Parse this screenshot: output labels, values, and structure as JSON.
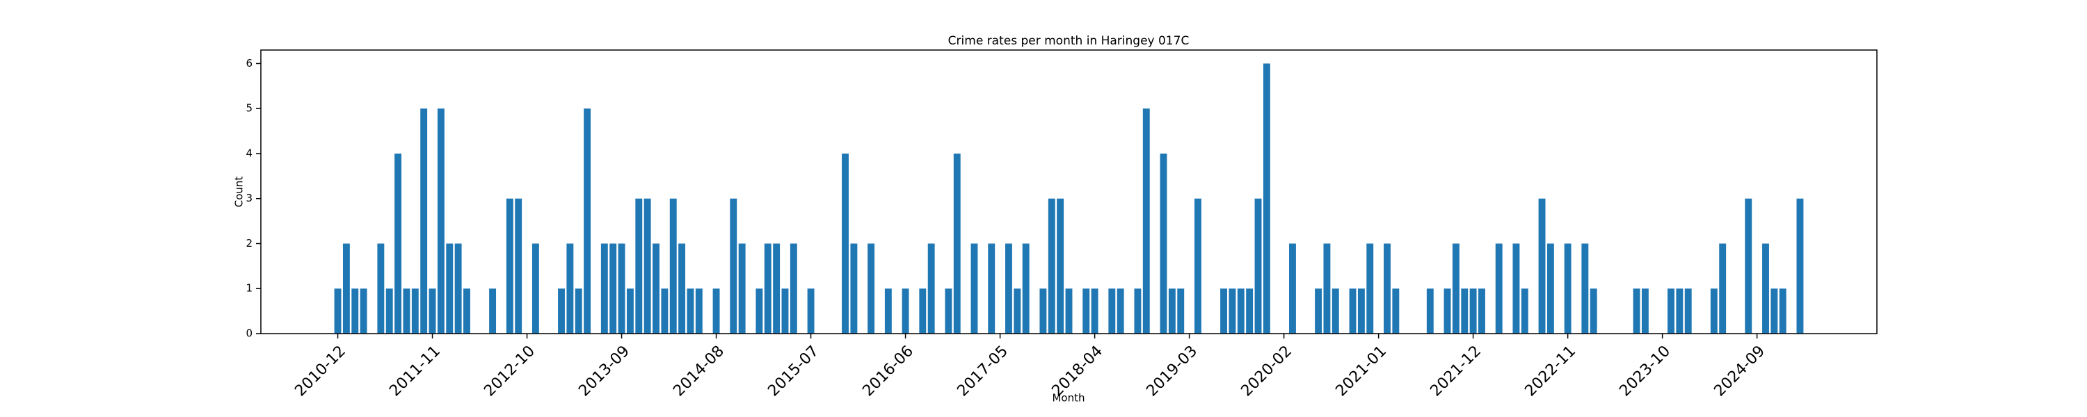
{
  "chart_data": {
    "type": "bar",
    "title": "Crime rates per month in Haringey 017C",
    "x_label": "Month",
    "y_label": "Count",
    "color": "#1f77b4",
    "categories": [
      "2010-12",
      null,
      null,
      null,
      null,
      null,
      null,
      null,
      null,
      null,
      null,
      "2011-11",
      null,
      null,
      null,
      null,
      null,
      null,
      null,
      null,
      null,
      null,
      "2012-10",
      null,
      null,
      null,
      null,
      null,
      null,
      null,
      null,
      null,
      null,
      "2013-09",
      null,
      null,
      null,
      null,
      null,
      null,
      null,
      null,
      null,
      null,
      "2014-08",
      null,
      null,
      null,
      null,
      null,
      null,
      null,
      null,
      null,
      null,
      "2015-07",
      null,
      null,
      null,
      null,
      null,
      null,
      null,
      null,
      null,
      null,
      "2016-06",
      null,
      null,
      null,
      null,
      null,
      null,
      null,
      null,
      null,
      null,
      "2017-05",
      null,
      null,
      null,
      null,
      null,
      null,
      null,
      null,
      null,
      null,
      "2018-04",
      null,
      null,
      null,
      null,
      null,
      null,
      null,
      null,
      null,
      null,
      "2019-03",
      null,
      null,
      null,
      null,
      null,
      null,
      null,
      null,
      null,
      null,
      "2020-02",
      null,
      null,
      null,
      null,
      null,
      null,
      null,
      null,
      null,
      null,
      "2021-01",
      null,
      null,
      null,
      null,
      null,
      null,
      null,
      null,
      null,
      null,
      "2021-12",
      null,
      null,
      null,
      null,
      null,
      null,
      null,
      null,
      null,
      null,
      "2022-11",
      null,
      null,
      null,
      null,
      null,
      null,
      null,
      null,
      null,
      null,
      "2023-10",
      null,
      null,
      null,
      null,
      null,
      null,
      null,
      null,
      null,
      null,
      "2024-09",
      null,
      null,
      null,
      null,
      null
    ],
    "values": [
      1,
      2,
      1,
      1,
      0,
      2,
      1,
      4,
      1,
      1,
      5,
      1,
      5,
      2,
      2,
      1,
      0,
      0,
      1,
      0,
      3,
      3,
      0,
      2,
      0,
      0,
      1,
      2,
      1,
      5,
      0,
      2,
      2,
      2,
      1,
      3,
      3,
      2,
      1,
      3,
      2,
      1,
      1,
      0,
      1,
      0,
      3,
      2,
      0,
      1,
      2,
      2,
      1,
      2,
      0,
      1,
      0,
      0,
      0,
      4,
      2,
      0,
      2,
      0,
      1,
      0,
      1,
      0,
      1,
      2,
      0,
      1,
      4,
      0,
      2,
      0,
      2,
      0,
      2,
      1,
      2,
      0,
      1,
      3,
      3,
      1,
      0,
      1,
      1,
      0,
      1,
      1,
      0,
      1,
      5,
      0,
      4,
      1,
      1,
      0,
      3,
      0,
      0,
      1,
      1,
      1,
      1,
      3,
      6,
      0,
      0,
      2,
      0,
      0,
      1,
      2,
      1,
      0,
      1,
      1,
      2,
      0,
      2,
      1,
      0,
      0,
      0,
      1,
      0,
      1,
      2,
      1,
      1,
      1,
      0,
      2,
      0,
      2,
      1,
      0,
      3,
      2,
      0,
      2,
      0,
      2,
      1,
      0,
      0,
      0,
      0,
      1,
      1,
      0,
      0,
      1,
      1,
      1,
      0,
      0,
      1,
      2,
      0,
      0,
      3,
      0,
      2,
      1,
      1,
      0,
      3
    ],
    "ylim": [
      0,
      6.3
    ],
    "yticks": [
      0,
      1,
      2,
      3,
      4,
      5,
      6
    ]
  }
}
